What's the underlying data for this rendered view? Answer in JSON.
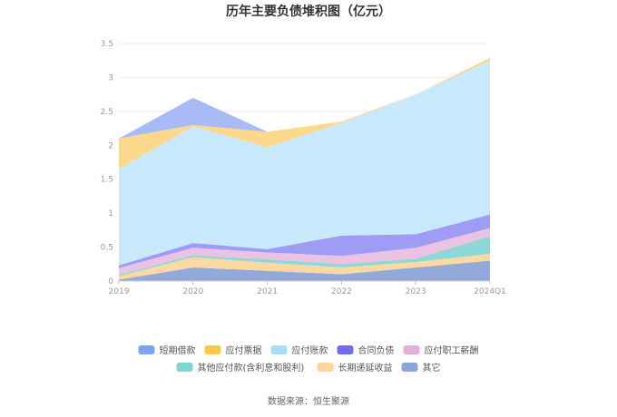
{
  "chart_data": {
    "type": "area",
    "stacked": true,
    "title": "历年主要负债堆积图（亿元）",
    "source": "数据来源：恒生聚源",
    "xlabel": "",
    "ylabel": "",
    "categories": [
      "2019",
      "2020",
      "2021",
      "2022",
      "2023",
      "2024Q1"
    ],
    "ylim": [
      0,
      3.5
    ],
    "yticks": [
      "0",
      "0.5",
      "1",
      "1.5",
      "2",
      "2.5",
      "3",
      "3.5"
    ],
    "grid": true,
    "legend_position": "bottom",
    "series": [
      {
        "name": "其它",
        "color": "#93a9d9",
        "values": [
          0.02,
          0.2,
          0.15,
          0.1,
          0.2,
          0.3
        ]
      },
      {
        "name": "长期递延收益",
        "color": "#fcd9a0",
        "values": [
          0.05,
          0.15,
          0.12,
          0.1,
          0.08,
          0.1
        ]
      },
      {
        "name": "其他应付款(含利息和股利)",
        "color": "#8fd8d8",
        "values": [
          0.02,
          0.03,
          0.05,
          0.05,
          0.05,
          0.26
        ]
      },
      {
        "name": "应付职工薪酬",
        "color": "#ebc2e1",
        "values": [
          0.1,
          0.11,
          0.1,
          0.12,
          0.16,
          0.12
        ]
      },
      {
        "name": "合同负债",
        "color": "#9e9cf4",
        "values": [
          0.04,
          0.07,
          0.05,
          0.3,
          0.2,
          0.2
        ]
      },
      {
        "name": "应付账款",
        "color": "#c7e9fb",
        "values": [
          1.42,
          1.72,
          1.5,
          1.66,
          2.06,
          2.27
        ]
      },
      {
        "name": "应付票据",
        "color": "#fcd98a",
        "values": [
          0.45,
          0.02,
          0.23,
          0.02,
          0.0,
          0.04
        ]
      },
      {
        "name": "短期借款",
        "color": "#a9bbf7",
        "values": [
          0.0,
          0.4,
          0.0,
          0.0,
          0.0,
          0.0
        ]
      }
    ],
    "legend_order": [
      "短期借款",
      "应付票据",
      "应付账款",
      "合同负债",
      "应付职工薪酬",
      "其他应付款(含利息和股利)",
      "长期递延收益",
      "其它"
    ],
    "legend_swatch_colors": {
      "短期借款": "#7ea3f5",
      "应付票据": "#fbc84b",
      "应付账款": "#a8dcf8",
      "合同负债": "#6f6cf0",
      "应付职工薪酬": "#e6aedb",
      "其他应付款(含利息和股利)": "#7fd5d0",
      "长期递延收益": "#fdd69b",
      "其它": "#8aa6dc"
    }
  }
}
